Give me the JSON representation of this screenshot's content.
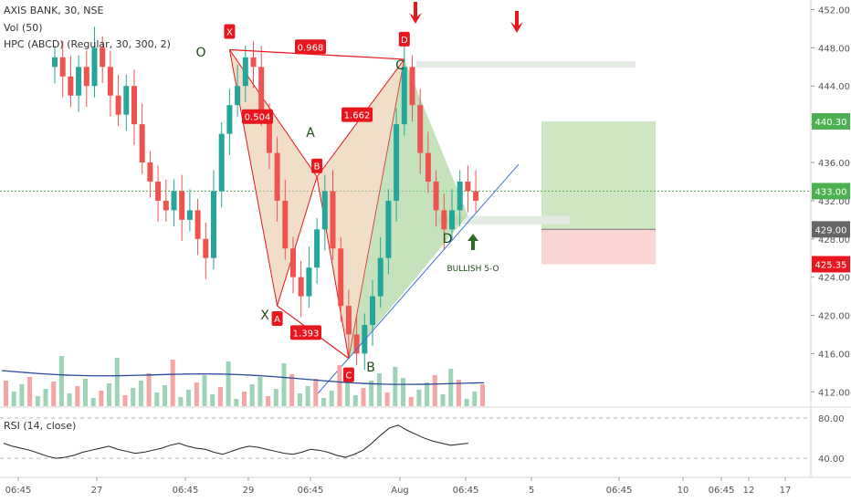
{
  "header": {
    "symbol": "AXIS BANK, 30, NSE",
    "volume_indicator": "Vol (50)",
    "pattern_indicator": "HPC (ABCD) (Regular, 30, 300, 2)",
    "rsi_indicator": "RSI (14, close)"
  },
  "colors": {
    "up": "#26a69a",
    "down": "#ef5350",
    "pattern_red": "#e8171f",
    "pattern_fill_orange": "#e6c39d",
    "pattern_fill_green": "#9fcf8f",
    "target_green": "#cfe6c3",
    "stop_red": "#fbd4d4",
    "trend_blue": "#3d6fd6",
    "volume_ma": "#2b4a9c",
    "rsi_line": "#222222",
    "current_price_green": "#4caf50",
    "arrow_dark_green": "#2e6b2a"
  },
  "chart_data": {
    "type": "candlestick",
    "price_axis": {
      "ticks": [
        412.0,
        416.0,
        420.0,
        424.0,
        428.0,
        432.0,
        436.0,
        440.0,
        444.0,
        448.0,
        452.0
      ]
    },
    "rsi_axis": {
      "ticks": [
        40.0,
        80.0
      ]
    },
    "time_axis": {
      "ticks": [
        "06:45",
        "27",
        "06:45",
        "29",
        "06:45",
        "Aug",
        "06:45",
        "5",
        "06:45",
        "10",
        "12",
        "06:45",
        "17"
      ]
    },
    "price_tags": [
      {
        "value": "440.30",
        "kind": "target"
      },
      {
        "value": "433.00",
        "kind": "current"
      },
      {
        "value": "429.00",
        "kind": "entry"
      },
      {
        "value": "425.35",
        "kind": "stop"
      }
    ],
    "pattern_points": [
      {
        "label": "X",
        "x_index": 22,
        "price": 447.8
      },
      {
        "label": "A",
        "x_index": 28,
        "price": 421.0
      },
      {
        "label": "B",
        "x_index": 33,
        "price": 434.5
      },
      {
        "label": "C",
        "x_index": 37,
        "price": 415.5
      },
      {
        "label": "D",
        "x_index": 44,
        "price": 446.8
      }
    ],
    "ratios": [
      {
        "value": "0.968"
      },
      {
        "value": "0.504"
      },
      {
        "value": "1.662"
      },
      {
        "value": "1.393"
      }
    ],
    "waves": [
      {
        "label": "O"
      },
      {
        "label": "X"
      },
      {
        "label": "A"
      },
      {
        "label": "B"
      },
      {
        "label": "C"
      },
      {
        "label": "D"
      }
    ],
    "annotation": "BULLISH 5-O",
    "close_series": [
      447,
      445,
      443,
      446,
      444,
      448,
      446,
      443,
      441,
      444,
      440,
      436,
      434,
      432,
      431,
      433,
      430,
      431,
      428,
      426,
      433,
      439,
      442,
      444,
      447,
      446,
      441,
      437,
      432,
      427,
      424,
      422,
      425,
      429,
      433,
      427,
      421,
      418,
      416,
      419,
      422,
      426,
      432,
      440,
      446,
      442,
      437,
      434,
      431,
      429,
      431,
      434,
      433,
      432
    ],
    "rsi_series": [
      55,
      52,
      50,
      48,
      45,
      42,
      40,
      41,
      43,
      46,
      48,
      50,
      52,
      49,
      47,
      45,
      46,
      48,
      50,
      53,
      55,
      52,
      50,
      49,
      46,
      44,
      47,
      50,
      52,
      51,
      49,
      47,
      45,
      44,
      46,
      49,
      48,
      46,
      43,
      41,
      44,
      48,
      55,
      63,
      70,
      73,
      68,
      64,
      60,
      57,
      55,
      53,
      54,
      55
    ]
  }
}
